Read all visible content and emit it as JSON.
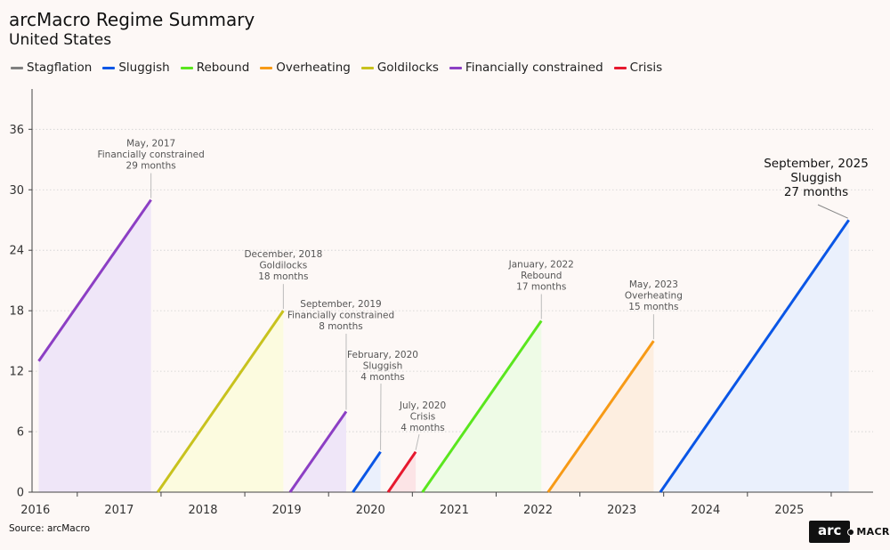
{
  "header": {
    "title": "arcMacro Regime Summary",
    "subtitle": "United States"
  },
  "legend": {
    "items": [
      {
        "label": "Stagflation",
        "color": "#808080"
      },
      {
        "label": "Sluggish",
        "color": "#0a56e6"
      },
      {
        "label": "Rebound",
        "color": "#5ae61e"
      },
      {
        "label": "Overheating",
        "color": "#f79a16"
      },
      {
        "label": "Goldilocks",
        "color": "#c8c21e"
      },
      {
        "label": "Financially constrained",
        "color": "#8c3fc4"
      },
      {
        "label": "Crisis",
        "color": "#e6192e"
      }
    ]
  },
  "footer": {
    "source": "Source: arcMacro",
    "logo_box": "arc",
    "logo_text": "MACRO"
  },
  "chart_data": {
    "type": "line",
    "title": "arcMacro Regime Summary",
    "subtitle": "United States",
    "xlabel": "",
    "ylabel": "",
    "xlim": [
      2015.96,
      2026.0
    ],
    "ylim": [
      0,
      40
    ],
    "yticks": [
      0,
      6,
      12,
      18,
      24,
      30,
      36
    ],
    "xticks": [
      2016,
      2017,
      2018,
      2019,
      2020,
      2021,
      2022,
      2023,
      2024,
      2025
    ],
    "grid": "horizontal-dotted",
    "series": [
      {
        "regime": "Financially constrained",
        "color": "#8c3fc4",
        "fill": "#efe6f8",
        "x": [
          2016.04,
          2017.38
        ],
        "y": [
          13,
          29
        ],
        "label": [
          "May, 2017",
          "Financially constrained",
          "29 months"
        ]
      },
      {
        "regime": "Goldilocks",
        "color": "#c8c21e",
        "fill": "#fcfbdf",
        "x": [
          2017.46,
          2018.96
        ],
        "y": [
          0,
          18
        ],
        "label": [
          "December, 2018",
          "Goldilocks",
          "18 months"
        ]
      },
      {
        "regime": "Financially constrained",
        "color": "#8c3fc4",
        "fill": "#efe6f8",
        "x": [
          2019.04,
          2019.71
        ],
        "y": [
          0,
          8
        ],
        "label": [
          "September, 2019",
          "Financially constrained",
          "8 months"
        ]
      },
      {
        "regime": "Sluggish",
        "color": "#0a56e6",
        "fill": "#eaf0fc",
        "x": [
          2019.79,
          2020.12
        ],
        "y": [
          0,
          4
        ],
        "label": [
          "February, 2020",
          "Sluggish",
          "4 months"
        ]
      },
      {
        "regime": "Crisis",
        "color": "#e6192e",
        "fill": "#fce4e6",
        "x": [
          2020.21,
          2020.54
        ],
        "y": [
          0,
          4
        ],
        "label": [
          "July, 2020",
          "Crisis",
          "4 months"
        ]
      },
      {
        "regime": "Rebound",
        "color": "#5ae61e",
        "fill": "#eefbe6",
        "x": [
          2020.62,
          2022.04
        ],
        "y": [
          0,
          17
        ],
        "label": [
          "January, 2022",
          "Rebound",
          "17 months"
        ]
      },
      {
        "regime": "Overheating",
        "color": "#f79a16",
        "fill": "#fdeee0",
        "x": [
          2022.12,
          2023.38
        ],
        "y": [
          0,
          15
        ],
        "label": [
          "May, 2023",
          "Overheating",
          "15 months"
        ]
      },
      {
        "regime": "Sluggish",
        "color": "#0a56e6",
        "fill": "#eaf0fc",
        "x": [
          2023.46,
          2025.71
        ],
        "y": [
          0,
          27
        ],
        "label": [
          "September, 2025",
          "Sluggish",
          "27 months"
        ],
        "highlight": true
      }
    ]
  }
}
